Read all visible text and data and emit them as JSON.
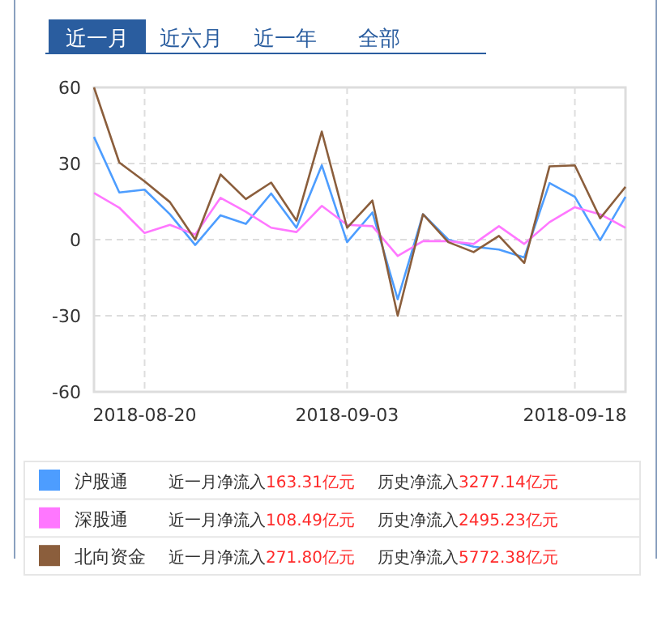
{
  "chart_data": {
    "type": "line",
    "categories": [
      null,
      null,
      "2018-08-20",
      null,
      null,
      null,
      null,
      null,
      null,
      null,
      "2018-09-03",
      null,
      null,
      null,
      null,
      null,
      null,
      null,
      null,
      "2018-09-18",
      null,
      null
    ],
    "series": [
      {
        "name": "沪股通",
        "color": "#4d9dff",
        "values": [
          40.5,
          18.6,
          19.7,
          10,
          -2.1,
          9.6,
          6.2,
          18.2,
          4.7,
          29.3,
          -1,
          10.7,
          -23.5,
          10,
          0,
          -2.8,
          -3.9,
          -7,
          22.3,
          16.9,
          -0.2,
          16.9
        ]
      },
      {
        "name": "深股通",
        "color": "#ff77ff",
        "values": [
          18.4,
          12.6,
          2.6,
          5.8,
          2,
          16.5,
          11,
          4.7,
          3,
          13.3,
          5.8,
          5.3,
          -6.4,
          -0.6,
          -0.6,
          -1.7,
          5.3,
          -1.7,
          6.9,
          12.8,
          10,
          4.7
        ]
      },
      {
        "name": "北向资金",
        "color": "#8b5e3c",
        "values": [
          60,
          30.4,
          23,
          14.8,
          0,
          25.7,
          16,
          22.5,
          7.5,
          42.6,
          4.7,
          15.4,
          -30,
          10,
          -1,
          -4.9,
          1.5,
          -9.2,
          28.9,
          29.3,
          8.4,
          20.8
        ]
      }
    ],
    "ylim": [
      -60,
      60
    ],
    "yticks": [
      -60,
      -30,
      0,
      30,
      60
    ],
    "grid": true,
    "legend": "bottom",
    "line_style": "solid",
    "marker": "none",
    "annotations": [
      "近一月",
      "近六月",
      "近一年",
      "全部",
      "近一月净流入163.31亿元",
      "历史净流入3277.14亿元",
      "近一月净流入108.49亿元",
      "历史净流入2495.23亿元",
      "近一月净流入271.80亿元",
      "历史净流入5772.38亿元"
    ]
  }
}
